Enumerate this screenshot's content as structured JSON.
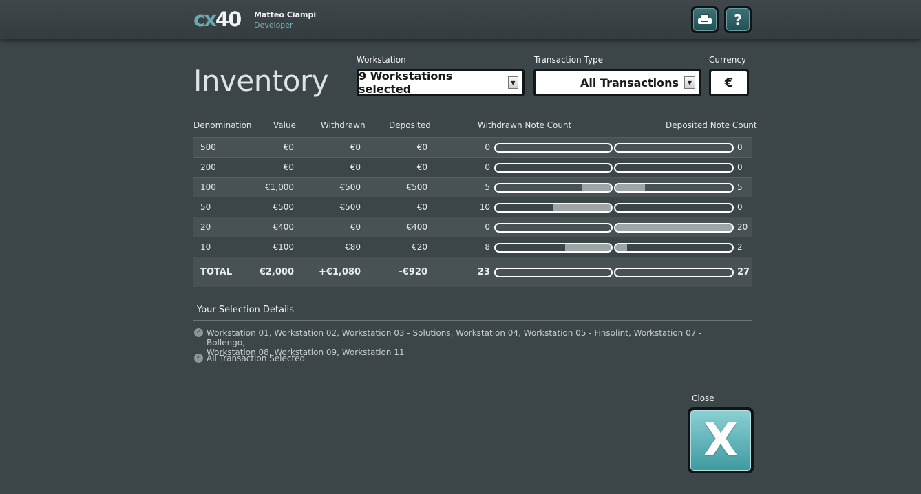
{
  "header": {
    "logo_prefix": "cx",
    "logo_number": "40",
    "user_name": "Matteo Ciampi",
    "user_role": "Developer",
    "print_icon": "printer-icon",
    "help_label": "?"
  },
  "page": {
    "title": "Inventory"
  },
  "filters": {
    "workstation_label": "Workstation",
    "workstation_value": "9 Workstations selected",
    "transaction_label": "Transaction Type",
    "transaction_value": "All Transactions",
    "currency_label": "Currency",
    "currency_value": "€"
  },
  "table": {
    "headers": {
      "denomination": "Denomination",
      "value": "Value",
      "withdrawn": "Withdrawn",
      "deposited": "Deposited",
      "withdrawn_count": "Withdrawn Note Count",
      "deposited_count": "Deposited Note Count"
    },
    "max_count": 20,
    "rows": [
      {
        "denomination": "500",
        "value": "€0",
        "withdrawn": "€0",
        "deposited": "€0",
        "withdrawn_count": "0",
        "deposited_count": "0",
        "w": 0,
        "d": 0
      },
      {
        "denomination": "200",
        "value": "€0",
        "withdrawn": "€0",
        "deposited": "€0",
        "withdrawn_count": "0",
        "deposited_count": "0",
        "w": 0,
        "d": 0
      },
      {
        "denomination": "100",
        "value": "€1,000",
        "withdrawn": "€500",
        "deposited": "€500",
        "withdrawn_count": "5",
        "deposited_count": "5",
        "w": 5,
        "d": 5
      },
      {
        "denomination": "50",
        "value": "€500",
        "withdrawn": "€500",
        "deposited": "€0",
        "withdrawn_count": "10",
        "deposited_count": "0",
        "w": 10,
        "d": 0
      },
      {
        "denomination": "20",
        "value": "€400",
        "withdrawn": "€0",
        "deposited": "€400",
        "withdrawn_count": "0",
        "deposited_count": "20",
        "w": 0,
        "d": 20
      },
      {
        "denomination": "10",
        "value": "€100",
        "withdrawn": "€80",
        "deposited": "€20",
        "withdrawn_count": "8",
        "deposited_count": "2",
        "w": 8,
        "d": 2
      }
    ],
    "total": {
      "label": "TOTAL",
      "value": "€2,000",
      "withdrawn": "+€1,080",
      "deposited": "-€920",
      "withdrawn_count": "23",
      "deposited_count": "27"
    }
  },
  "selection": {
    "title": "Your Selection Details",
    "workstations_line1": "Workstation 01, Workstation 02, Workstation 03 - Solutions, Workstation 04, Workstation 05 - Finsolint, Workstation 07 - Bollengo,",
    "workstations_line2": "Workstation 08, Workstation 09, Workstation 11",
    "transactions": "All Transaction Selected"
  },
  "close": {
    "label": "Close",
    "button": "X"
  }
}
